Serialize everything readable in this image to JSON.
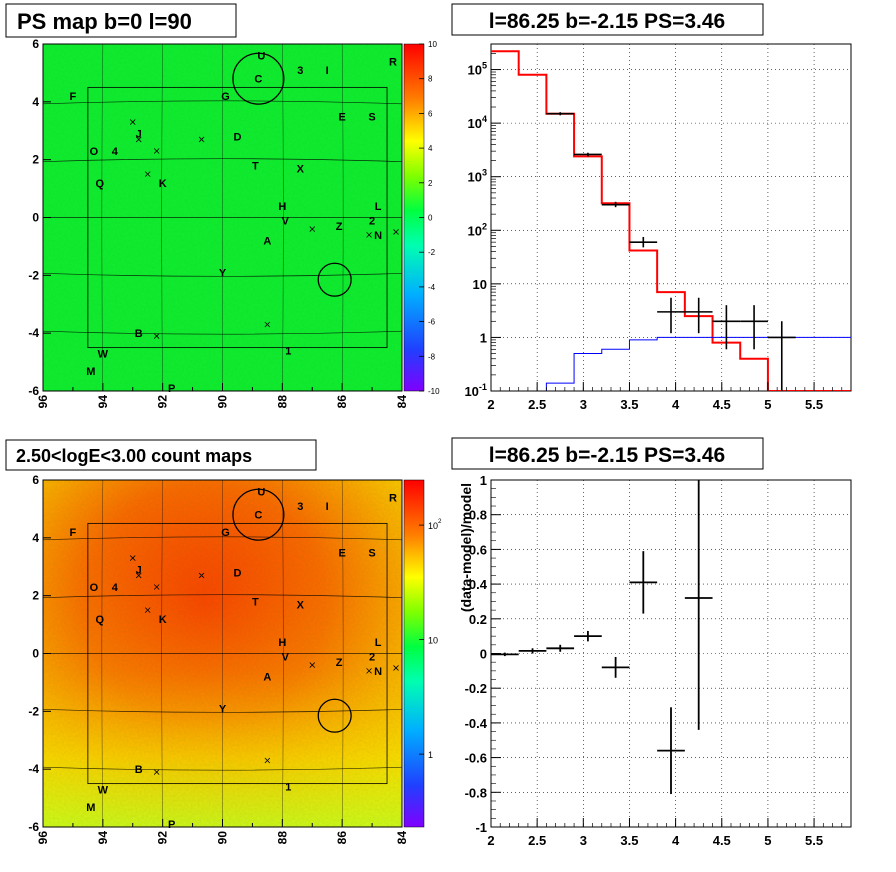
{
  "titles": {
    "ps_map": "PS map b=0 l=90",
    "spectrum": "l=86.25 b=-2.15 PS=3.46",
    "count_map": "2.50<logE<3.00 count maps",
    "residual": "l=86.25 b=-2.15 PS=3.46"
  },
  "map_axes": {
    "x_ticks": [
      "96",
      "94",
      "92",
      "90",
      "88",
      "86",
      "84"
    ],
    "y_ticks": [
      "6",
      "4",
      "2",
      "0",
      "-2",
      "-4",
      "-6"
    ]
  },
  "sources": [
    {
      "l": 88.7,
      "b": 5.6,
      "label": "U"
    },
    {
      "l": 88.8,
      "b": 4.8,
      "label": "C"
    },
    {
      "l": 87.4,
      "b": 5.1,
      "label": "3"
    },
    {
      "l": 86.5,
      "b": 5.1,
      "label": "I"
    },
    {
      "l": 84.3,
      "b": 5.4,
      "label": "R"
    },
    {
      "l": 95.0,
      "b": 4.2,
      "label": "F"
    },
    {
      "l": 89.9,
      "b": 4.2,
      "label": "G"
    },
    {
      "l": 86.0,
      "b": 3.5,
      "label": "E"
    },
    {
      "l": 85.0,
      "b": 3.5,
      "label": "S"
    },
    {
      "l": 92.8,
      "b": 2.9,
      "label": "J"
    },
    {
      "l": 89.5,
      "b": 2.8,
      "label": "D"
    },
    {
      "l": 93.6,
      "b": 2.3,
      "label": "4"
    },
    {
      "l": 94.3,
      "b": 2.3,
      "label": "O"
    },
    {
      "l": 88.9,
      "b": 1.8,
      "label": "T"
    },
    {
      "l": 87.4,
      "b": 1.7,
      "label": "X"
    },
    {
      "l": 94.1,
      "b": 1.2,
      "label": "Q"
    },
    {
      "l": 92.0,
      "b": 1.2,
      "label": "K"
    },
    {
      "l": 88.0,
      "b": 0.4,
      "label": "H"
    },
    {
      "l": 84.8,
      "b": 0.4,
      "label": "L"
    },
    {
      "l": 87.9,
      "b": -0.1,
      "label": "V"
    },
    {
      "l": 85.0,
      "b": -0.1,
      "label": "2"
    },
    {
      "l": 86.1,
      "b": -0.3,
      "label": "Z"
    },
    {
      "l": 84.8,
      "b": -0.6,
      "label": "N"
    },
    {
      "l": 88.5,
      "b": -0.8,
      "label": "A"
    },
    {
      "l": 90.0,
      "b": -1.9,
      "label": "Y"
    },
    {
      "l": 92.8,
      "b": -4.0,
      "label": "B"
    },
    {
      "l": 94.0,
      "b": -4.7,
      "label": "W"
    },
    {
      "l": 87.8,
      "b": -4.6,
      "label": "1"
    },
    {
      "l": 94.4,
      "b": -5.3,
      "label": "M"
    },
    {
      "l": 91.7,
      "b": -5.9,
      "label": "P"
    }
  ],
  "crosses": [
    {
      "l": 93.0,
      "b": 3.3
    },
    {
      "l": 92.8,
      "b": 2.7
    },
    {
      "l": 92.2,
      "b": 2.3
    },
    {
      "l": 90.7,
      "b": 2.7
    },
    {
      "l": 92.5,
      "b": 1.5
    },
    {
      "l": 87.0,
      "b": -0.4
    },
    {
      "l": 85.1,
      "b": -0.6
    },
    {
      "l": 84.2,
      "b": -0.5
    },
    {
      "l": 88.5,
      "b": -3.7
    },
    {
      "l": 92.2,
      "b": -4.1
    }
  ],
  "circles": [
    {
      "l": 88.8,
      "b": 4.8,
      "r": 0.85
    },
    {
      "l": 86.25,
      "b": -2.15,
      "r": 0.55
    }
  ],
  "grid_box": {
    "l": [
      94.5,
      84.5
    ],
    "b": [
      -4.5,
      4.5
    ]
  },
  "colorbar_ps": {
    "ticks": [
      "10",
      "8",
      "6",
      "4",
      "2",
      "0",
      "-2",
      "-4",
      "-6",
      "-8",
      "-10"
    ]
  },
  "colorbar_counts": {
    "ticks": [
      "10^2",
      "10",
      "1"
    ]
  },
  "chart_data": [
    {
      "type": "step",
      "title": "l=86.25 b=-2.15 PS=3.46",
      "xlim": [
        2,
        5.9
      ],
      "ylim": [
        0.1,
        300000
      ],
      "log_y": true,
      "x_ticks": [
        "2",
        "2.5",
        "3",
        "3.5",
        "4",
        "4.5",
        "5",
        "5.5"
      ],
      "y_ticks": [
        "10^-1",
        "1",
        "10",
        "10^2",
        "10^3",
        "10^4",
        "10^5"
      ],
      "grid": true,
      "series": [
        {
          "color": "#ff0000",
          "bins": [
            2.0,
            2.3,
            2.6,
            2.9,
            3.2,
            3.5,
            3.8,
            4.1,
            4.4,
            4.7,
            5.0,
            5.3,
            5.9
          ],
          "values": [
            220000,
            80000,
            15000,
            2400,
            320,
            42,
            7,
            2.5,
            0.8,
            0.4,
            0.1,
            0.1
          ]
        },
        {
          "color": "#0000ff",
          "bins": [
            2.0,
            2.3,
            2.6,
            2.9,
            3.2,
            3.5,
            3.8,
            4.1,
            4.4,
            4.7,
            5.0,
            5.3,
            5.9
          ],
          "values": [
            0.01,
            0.01,
            0.14,
            0.5,
            0.6,
            0.9,
            1,
            1,
            1,
            1,
            1,
            1
          ]
        },
        {
          "color": "#000000",
          "points": [
            {
              "x": 2.75,
              "xerr": 0.15,
              "y": 15000,
              "ylo": 14000,
              "yhi": 16000
            },
            {
              "x": 3.05,
              "xerr": 0.15,
              "y": 2600,
              "ylo": 2400,
              "yhi": 2800
            },
            {
              "x": 3.35,
              "xerr": 0.15,
              "y": 300,
              "ylo": 270,
              "yhi": 340
            },
            {
              "x": 3.65,
              "xerr": 0.15,
              "y": 60,
              "ylo": 48,
              "yhi": 75
            },
            {
              "x": 3.95,
              "xerr": 0.15,
              "y": 3,
              "ylo": 1.2,
              "yhi": 5.5
            },
            {
              "x": 4.25,
              "xerr": 0.15,
              "y": 3,
              "ylo": 1.2,
              "yhi": 5.5
            },
            {
              "x": 4.55,
              "xerr": 0.15,
              "y": 2,
              "ylo": 0.6,
              "yhi": 4
            },
            {
              "x": 4.85,
              "xerr": 0.15,
              "y": 2,
              "ylo": 0.6,
              "yhi": 4
            },
            {
              "x": 5.15,
              "xerr": 0.15,
              "y": 1,
              "ylo": 0.1,
              "yhi": 2
            }
          ]
        }
      ]
    },
    {
      "type": "scatter",
      "title": "l=86.25 b=-2.15 PS=3.46",
      "ylabel": "(data-model)/model",
      "xlim": [
        2,
        5.9
      ],
      "ylim": [
        -1,
        1
      ],
      "x_ticks": [
        "2",
        "2.5",
        "3",
        "3.5",
        "4",
        "4.5",
        "5",
        "5.5"
      ],
      "y_ticks": [
        "1",
        "0.8",
        "0.6",
        "0.4",
        "0.2",
        "0",
        "-0.2",
        "-0.4",
        "-0.6",
        "-0.8",
        "-1"
      ],
      "grid": true,
      "points": [
        {
          "x": 2.15,
          "xerr": 0.15,
          "y": -0.005,
          "err": 0.01
        },
        {
          "x": 2.45,
          "xerr": 0.15,
          "y": 0.015,
          "err": 0.015
        },
        {
          "x": 2.75,
          "xerr": 0.15,
          "y": 0.03,
          "err": 0.02
        },
        {
          "x": 3.05,
          "xerr": 0.15,
          "y": 0.1,
          "err": 0.03
        },
        {
          "x": 3.35,
          "xerr": 0.15,
          "y": -0.08,
          "err": 0.06
        },
        {
          "x": 3.65,
          "xerr": 0.15,
          "y": 0.41,
          "err": 0.18
        },
        {
          "x": 3.95,
          "xerr": 0.15,
          "y": -0.56,
          "err": 0.25
        },
        {
          "x": 4.25,
          "xerr": 0.15,
          "y": 0.32,
          "err": 0.76
        }
      ]
    }
  ]
}
